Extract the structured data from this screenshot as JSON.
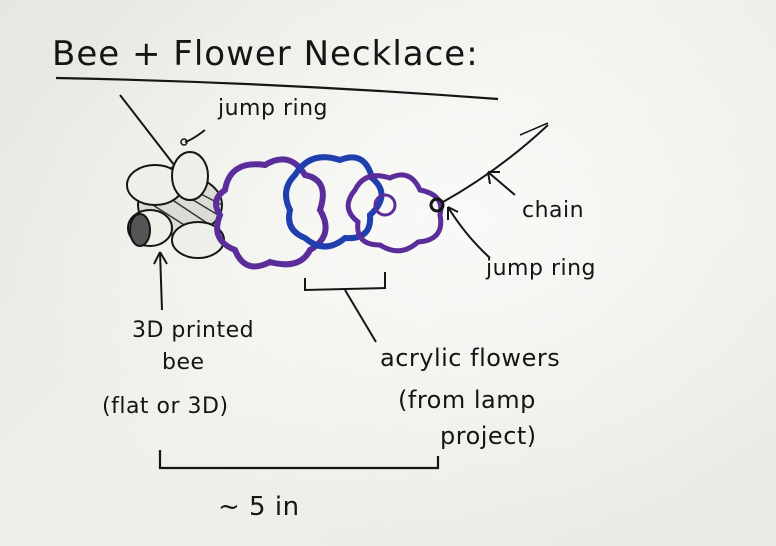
{
  "title": "Bee + Flower Necklace:",
  "labels": {
    "jump_ring_top": "jump ring",
    "chain": "chain",
    "jump_ring_right": "jump ring",
    "bee_line1": "3D printed",
    "bee_line2": "bee",
    "bee_line3": "(flat or 3D)",
    "flowers_line1": "acrylic flowers",
    "flowers_line2": "(from lamp",
    "flowers_line3": "project)",
    "length": "~ 5 in"
  },
  "colors": {
    "ink": "#151515",
    "purple": "#5b2d9a",
    "blue": "#1f3fae",
    "paper": "#efefea"
  }
}
